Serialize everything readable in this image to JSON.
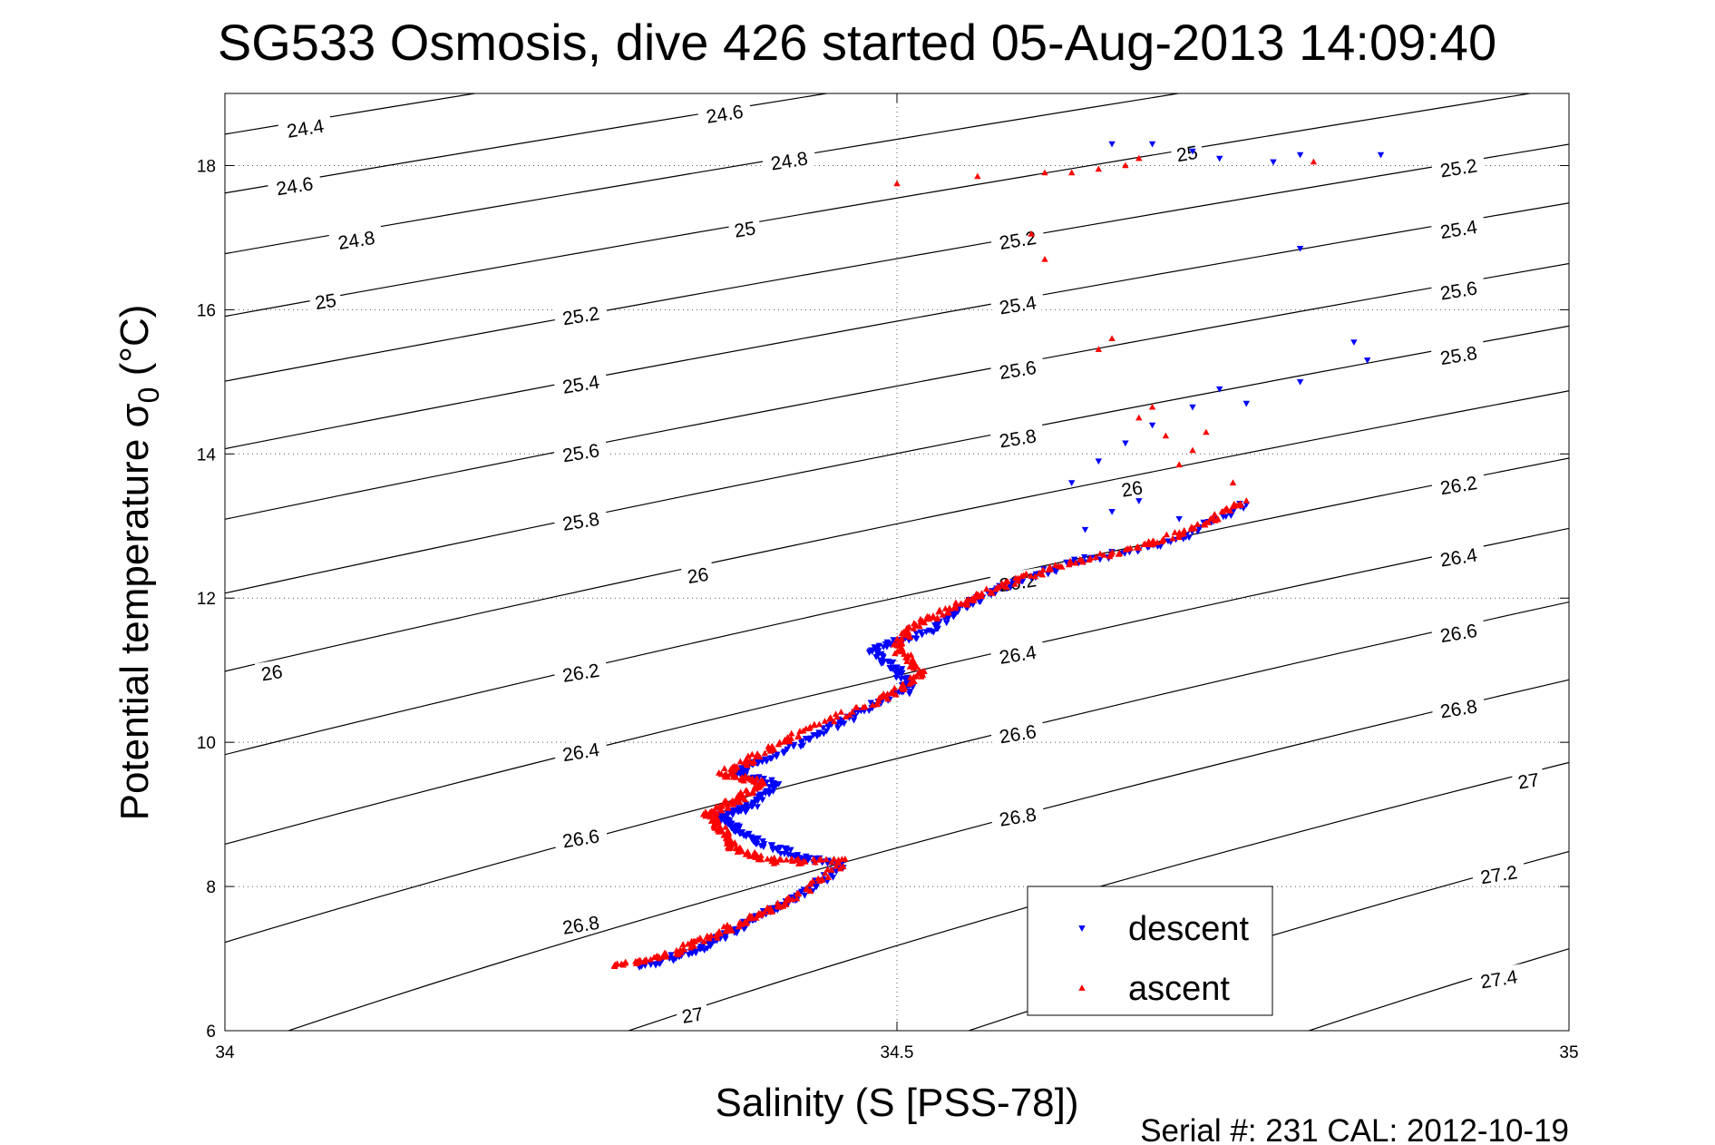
{
  "chart_data": {
    "type": "scatter",
    "title": "SG533 Osmosis, dive 426 started 05-Aug-2013 14:09:40",
    "xlabel": "Salinity (S [PSS-78])",
    "ylabel": "Potential temperature σ₀ (°C)",
    "ylabel_main": "Potential temperature ",
    "ylabel_sigma": "σ",
    "ylabel_sub": "0",
    "ylabel_unit": " (°C)",
    "footer": "Serial #: 231  CAL: 2012-10-19",
    "xlim": [
      34,
      35
    ],
    "ylim": [
      6,
      19
    ],
    "xticks": [
      34,
      34.5,
      35
    ],
    "xtick_labels": [
      "34",
      "34.5",
      "35"
    ],
    "yticks": [
      6,
      8,
      10,
      12,
      14,
      16,
      18
    ],
    "ytick_labels": [
      "6",
      "8",
      "10",
      "12",
      "14",
      "16",
      "18"
    ],
    "grid": "dotted at x=34.5 and major y ticks",
    "legend_position": "bottom-center",
    "density_contours": {
      "levels": [
        24.4,
        24.6,
        24.8,
        25,
        25.2,
        25.4,
        25.6,
        25.8,
        26,
        26.2,
        26.4,
        26.6,
        26.8,
        27,
        27.2,
        27.4
      ],
      "color": "#000000",
      "labels": [
        {
          "text": "24.4",
          "x": 34.06,
          "y": 18.5
        },
        {
          "text": "24.6",
          "x": 34.372,
          "y": 18.7
        },
        {
          "text": "24.6",
          "x": 34.052,
          "y": 17.7
        },
        {
          "text": "24.8",
          "x": 34.42,
          "y": 18.05
        },
        {
          "text": "24.8",
          "x": 34.098,
          "y": 16.95
        },
        {
          "text": "25",
          "x": 34.387,
          "y": 17.1
        },
        {
          "text": "25",
          "x": 34.075,
          "y": 16.1
        },
        {
          "text": "25",
          "x": 34.716,
          "y": 18.15
        },
        {
          "text": "25.2",
          "x": 34.265,
          "y": 15.9
        },
        {
          "text": "25.2",
          "x": 34.59,
          "y": 16.95
        },
        {
          "text": "25.2",
          "x": 34.918,
          "y": 17.95
        },
        {
          "text": "25.4",
          "x": 34.265,
          "y": 14.95
        },
        {
          "text": "25.4",
          "x": 34.59,
          "y": 16.05
        },
        {
          "text": "25.4",
          "x": 34.918,
          "y": 17.1
        },
        {
          "text": "25.6",
          "x": 34.265,
          "y": 14.0
        },
        {
          "text": "25.6",
          "x": 34.59,
          "y": 15.15
        },
        {
          "text": "25.6",
          "x": 34.918,
          "y": 16.25
        },
        {
          "text": "25.8",
          "x": 34.265,
          "y": 13.05
        },
        {
          "text": "25.8",
          "x": 34.59,
          "y": 14.2
        },
        {
          "text": "25.8",
          "x": 34.918,
          "y": 15.35
        },
        {
          "text": "26",
          "x": 34.035,
          "y": 10.95
        },
        {
          "text": "26",
          "x": 34.352,
          "y": 12.3
        },
        {
          "text": "26",
          "x": 34.675,
          "y": 13.5
        },
        {
          "text": "26.2",
          "x": 34.265,
          "y": 10.95
        },
        {
          "text": "26.2",
          "x": 34.59,
          "y": 12.2
        },
        {
          "text": "26.2",
          "x": 34.918,
          "y": 13.55
        },
        {
          "text": "26.4",
          "x": 34.265,
          "y": 9.85
        },
        {
          "text": "26.4",
          "x": 34.59,
          "y": 11.2
        },
        {
          "text": "26.4",
          "x": 34.918,
          "y": 12.55
        },
        {
          "text": "26.6",
          "x": 34.265,
          "y": 8.65
        },
        {
          "text": "26.6",
          "x": 34.59,
          "y": 10.1
        },
        {
          "text": "26.6",
          "x": 34.918,
          "y": 11.5
        },
        {
          "text": "26.8",
          "x": 34.265,
          "y": 7.45
        },
        {
          "text": "26.8",
          "x": 34.59,
          "y": 8.95
        },
        {
          "text": "26.8",
          "x": 34.918,
          "y": 10.45
        },
        {
          "text": "27",
          "x": 34.348,
          "y": 6.2
        },
        {
          "text": "27",
          "x": 34.97,
          "y": 9.45
        },
        {
          "text": "27.2",
          "x": 34.948,
          "y": 8.15
        },
        {
          "text": "27.4",
          "x": 34.948,
          "y": 6.7
        }
      ]
    },
    "series": [
      {
        "name": "descent",
        "color": "#0000ff",
        "marker": "down-triangle",
        "path": [
          [
            34.31,
            6.89
          ],
          [
            34.35,
            7.1
          ],
          [
            34.37,
            7.3
          ],
          [
            34.4,
            7.6
          ],
          [
            34.43,
            7.9
          ],
          [
            34.46,
            8.3
          ],
          [
            34.43,
            8.4
          ],
          [
            34.4,
            8.6
          ],
          [
            34.38,
            8.8
          ],
          [
            34.37,
            9.0
          ],
          [
            34.39,
            9.1
          ],
          [
            34.41,
            9.4
          ],
          [
            34.38,
            9.6
          ],
          [
            34.4,
            9.75
          ],
          [
            34.44,
            10.1
          ],
          [
            34.47,
            10.4
          ],
          [
            34.51,
            10.75
          ],
          [
            34.5,
            11.0
          ],
          [
            34.48,
            11.3
          ],
          [
            34.52,
            11.5
          ],
          [
            34.55,
            11.9
          ],
          [
            34.58,
            12.15
          ],
          [
            34.63,
            12.5
          ],
          [
            34.7,
            12.75
          ],
          [
            34.76,
            13.3
          ]
        ],
        "scatter": [
          [
            34.65,
            13.9
          ],
          [
            34.63,
            13.6
          ],
          [
            34.66,
            13.2
          ],
          [
            34.64,
            12.95
          ],
          [
            34.68,
            13.35
          ],
          [
            34.71,
            13.1
          ],
          [
            34.67,
            14.15
          ],
          [
            34.69,
            14.4
          ],
          [
            34.72,
            14.65
          ],
          [
            34.74,
            14.9
          ],
          [
            34.76,
            14.7
          ],
          [
            34.8,
            15.0
          ],
          [
            34.85,
            15.3
          ],
          [
            34.84,
            15.55
          ],
          [
            34.8,
            16.85
          ],
          [
            34.66,
            18.3
          ],
          [
            34.69,
            18.3
          ],
          [
            34.72,
            18.2
          ],
          [
            34.74,
            18.1
          ],
          [
            34.78,
            18.05
          ],
          [
            34.8,
            18.15
          ],
          [
            34.86,
            18.15
          ]
        ]
      },
      {
        "name": "ascent",
        "color": "#ff0000",
        "marker": "up-triangle",
        "path": [
          [
            34.29,
            6.9
          ],
          [
            34.33,
            7.05
          ],
          [
            34.36,
            7.3
          ],
          [
            34.39,
            7.55
          ],
          [
            34.42,
            7.8
          ],
          [
            34.46,
            8.35
          ],
          [
            34.41,
            8.35
          ],
          [
            34.38,
            8.5
          ],
          [
            34.37,
            8.8
          ],
          [
            34.36,
            9.0
          ],
          [
            34.38,
            9.2
          ],
          [
            34.4,
            9.45
          ],
          [
            34.37,
            9.55
          ],
          [
            34.39,
            9.75
          ],
          [
            34.43,
            10.15
          ],
          [
            34.49,
            10.6
          ],
          [
            34.52,
            10.95
          ],
          [
            34.5,
            11.3
          ],
          [
            34.51,
            11.6
          ],
          [
            34.54,
            11.85
          ],
          [
            34.57,
            12.1
          ],
          [
            34.62,
            12.45
          ],
          [
            34.68,
            12.7
          ],
          [
            34.72,
            12.95
          ],
          [
            34.76,
            13.35
          ]
        ],
        "scatter": [
          [
            34.71,
            13.85
          ],
          [
            34.72,
            14.05
          ],
          [
            34.7,
            14.25
          ],
          [
            34.68,
            14.5
          ],
          [
            34.69,
            14.65
          ],
          [
            34.73,
            14.3
          ],
          [
            34.75,
            13.6
          ],
          [
            34.66,
            15.6
          ],
          [
            34.65,
            15.45
          ],
          [
            34.61,
            16.7
          ],
          [
            34.6,
            17.05
          ],
          [
            34.68,
            18.1
          ],
          [
            34.67,
            18.0
          ],
          [
            34.65,
            17.95
          ],
          [
            34.63,
            17.9
          ],
          [
            34.61,
            17.9
          ],
          [
            34.56,
            17.85
          ],
          [
            34.5,
            17.75
          ],
          [
            34.81,
            18.05
          ]
        ]
      }
    ]
  }
}
